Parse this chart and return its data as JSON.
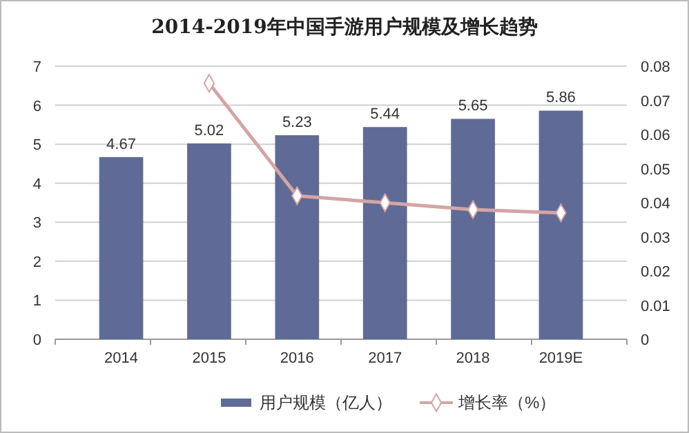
{
  "chart_data": {
    "type": "bar",
    "title": "2014-2019年中国手游用户规模及增长趋势",
    "categories": [
      "2014",
      "2015",
      "2016",
      "2017",
      "2018",
      "2019E"
    ],
    "series": [
      {
        "name": "用户规模（亿人）",
        "color": "#5f6b96",
        "values": [
          4.67,
          5.02,
          5.23,
          5.44,
          5.65,
          5.86
        ],
        "value_labels": [
          "4.67",
          "5.02",
          "5.23",
          "5.44",
          "5.65",
          "5.86"
        ]
      },
      {
        "name": "增长率（%）",
        "type": "line",
        "axis": "y2",
        "color": "#d4a5a5",
        "marker": "diamond",
        "values": [
          null,
          0.075,
          0.042,
          0.04,
          0.038,
          0.037
        ]
      }
    ],
    "ylim": [
      0,
      7
    ],
    "yticks": [
      0,
      1,
      2,
      3,
      4,
      5,
      6,
      7
    ],
    "y2lim": [
      0,
      0.08
    ],
    "y2ticks": [
      0,
      0.01,
      0.02,
      0.03,
      0.04,
      0.05,
      0.06,
      0.07,
      0.08
    ],
    "grid": "y",
    "legend": "bottom"
  }
}
